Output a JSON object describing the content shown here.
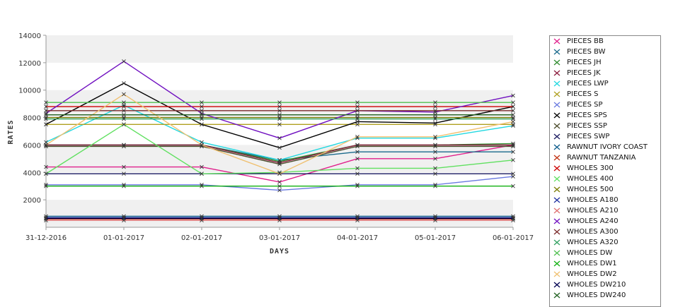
{
  "chart_data": {
    "type": "line",
    "title": "",
    "xlabel": "DAYS",
    "ylabel": "RATES",
    "categories": [
      "31-12-2016",
      "01-01-2017",
      "02-01-2017",
      "03-01-2017",
      "04-01-2017",
      "05-01-2017",
      "06-01-2017"
    ],
    "ylim": [
      0,
      14000
    ],
    "yticks": [
      2000,
      4000,
      6000,
      8000,
      10000,
      12000,
      14000
    ],
    "grid": "alternating horizontal bands",
    "legend_position": "right",
    "series": [
      {
        "name": "PIECES BB",
        "color": "#e0208c",
        "values": [
          4400,
          4400,
          4400,
          3300,
          5000,
          5000,
          6000
        ]
      },
      {
        "name": "PIECES BW",
        "color": "#1a6a8c",
        "values": [
          6000,
          6000,
          6000,
          4900,
          5500,
          5500,
          5500
        ]
      },
      {
        "name": "PIECES JH",
        "color": "#2e8b2e",
        "values": [
          6000,
          6000,
          6000,
          4800,
          6000,
          6000,
          6100
        ]
      },
      {
        "name": "PIECES JK",
        "color": "#8b1a3c",
        "values": [
          6000,
          6000,
          6000,
          4700,
          6000,
          6000,
          6000
        ]
      },
      {
        "name": "PIECES LWP",
        "color": "#20d8e0",
        "values": [
          6200,
          8900,
          6200,
          4900,
          6500,
          6500,
          7400
        ]
      },
      {
        "name": "PIECES S",
        "color": "#b0a020",
        "values": [
          7500,
          7500,
          7500,
          7500,
          7500,
          7500,
          7500
        ]
      },
      {
        "name": "PIECES SP",
        "color": "#6a7ae0",
        "values": [
          3100,
          3100,
          3100,
          2700,
          3100,
          3100,
          3700
        ]
      },
      {
        "name": "PIECES SPS",
        "color": "#000000",
        "values": [
          7500,
          10500,
          7500,
          5800,
          7700,
          7600,
          8800
        ]
      },
      {
        "name": "PIECES SSP",
        "color": "#4a4a2a",
        "values": [
          5900,
          5900,
          5900,
          4600,
          5900,
          5900,
          5900
        ]
      },
      {
        "name": "PIECES SWP",
        "color": "#1a1a60",
        "values": [
          3900,
          3900,
          3900,
          3900,
          3900,
          3900,
          3900
        ]
      },
      {
        "name": "RAWNUT IVORY COAST",
        "color": "#0a5a8a",
        "values": [
          800,
          800,
          800,
          800,
          800,
          800,
          800
        ]
      },
      {
        "name": "RAWNUT TANZANIA",
        "color": "#c03010",
        "values": [
          600,
          600,
          600,
          600,
          600,
          600,
          600
        ]
      },
      {
        "name": "WHOLES 300",
        "color": "#cc0000",
        "values": [
          8800,
          8800,
          8800,
          8800,
          8800,
          8800,
          8800
        ]
      },
      {
        "name": "WHOLES 400",
        "color": "#60e060",
        "values": [
          3900,
          7500,
          3900,
          4000,
          4300,
          4300,
          4900
        ]
      },
      {
        "name": "WHOLES 500",
        "color": "#7a7a00",
        "values": [
          8000,
          8000,
          8000,
          8000,
          8000,
          8000,
          8000
        ]
      },
      {
        "name": "WHOLES A180",
        "color": "#2030a0",
        "values": [
          700,
          700,
          700,
          700,
          700,
          700,
          700
        ]
      },
      {
        "name": "WHOLES A210",
        "color": "#e07070",
        "values": [
          500,
          500,
          500,
          500,
          500,
          500,
          500
        ]
      },
      {
        "name": "WHOLES A240",
        "color": "#7010c0",
        "values": [
          8300,
          12100,
          8300,
          6500,
          8500,
          8400,
          9600
        ]
      },
      {
        "name": "WHOLES A300",
        "color": "#7a2a2a",
        "values": [
          8500,
          8500,
          8500,
          8500,
          8500,
          8500,
          8500
        ]
      },
      {
        "name": "WHOLES A320",
        "color": "#30a060",
        "values": [
          7900,
          7900,
          7900,
          7900,
          7900,
          7900,
          7900
        ]
      },
      {
        "name": "WHOLES DW",
        "color": "#50c050",
        "values": [
          9100,
          9100,
          9100,
          9100,
          9100,
          9100,
          9100
        ]
      },
      {
        "name": "WHOLES DW1",
        "color": "#10b010",
        "values": [
          3000,
          3000,
          3000,
          3000,
          3000,
          3000,
          3000
        ]
      },
      {
        "name": "WHOLES DW2",
        "color": "#f0c070",
        "values": [
          6000,
          9700,
          6000,
          3900,
          6600,
          6600,
          7700
        ]
      },
      {
        "name": "WHOLES DW210",
        "color": "#000050",
        "values": [
          650,
          650,
          650,
          650,
          650,
          650,
          650
        ]
      },
      {
        "name": "WHOLES DW240",
        "color": "#206020",
        "values": [
          8200,
          8200,
          8200,
          8200,
          8200,
          8200,
          8200
        ]
      }
    ]
  }
}
